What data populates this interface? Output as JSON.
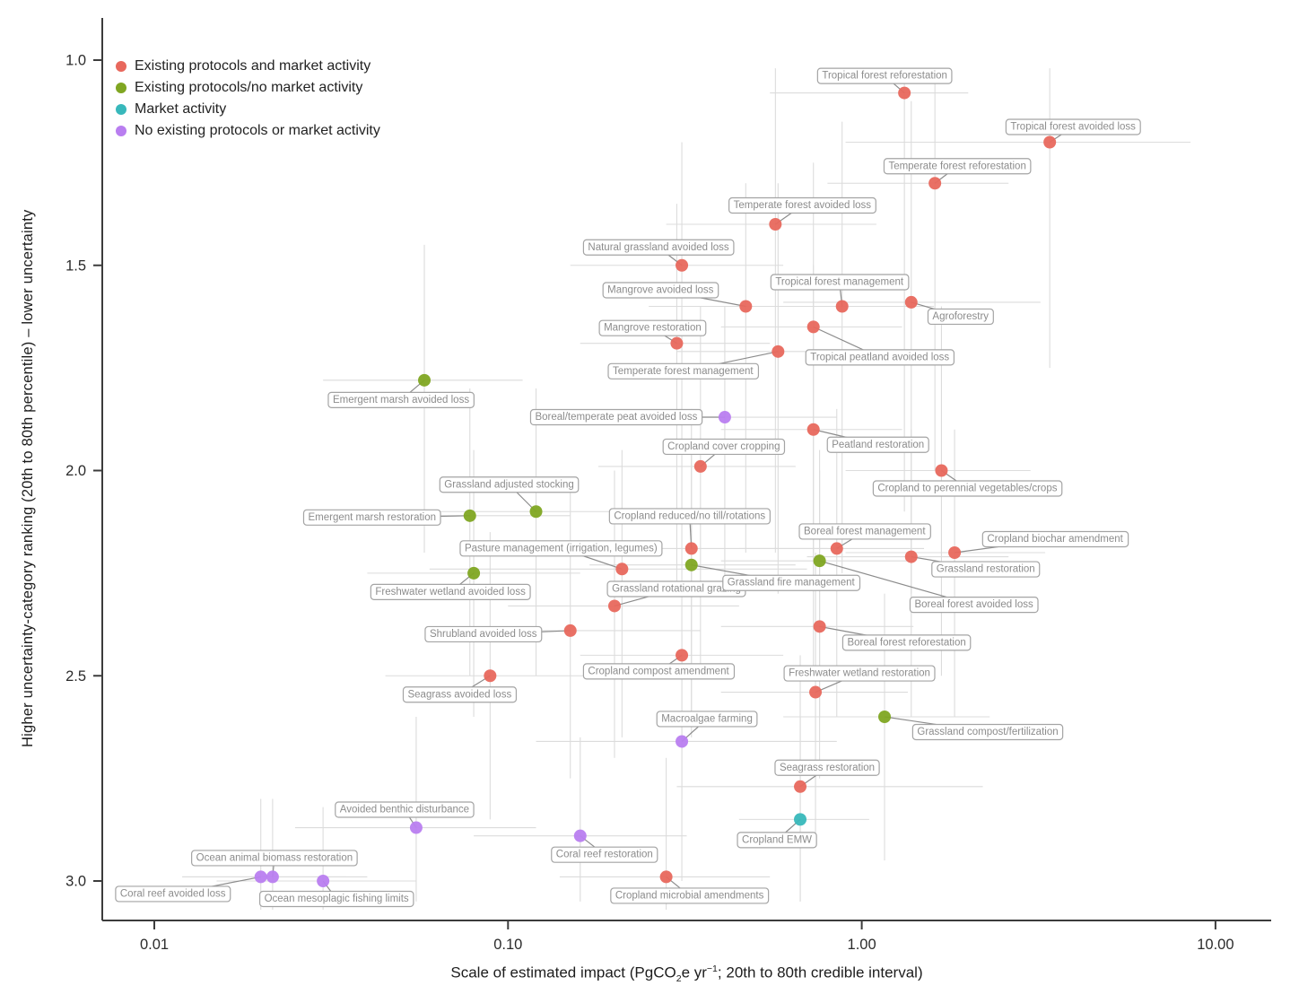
{
  "figure": {
    "ylabel": "Higher uncertainty-category ranking (20th to 80th percentile) – lower uncertainty",
    "xlabel_pre": "Scale of estimated impact (PgCO",
    "xlabel_sub": "2",
    "xlabel_mid": "e yr",
    "xlabel_sup": "−1",
    "xlabel_post": "; 20th to 80th credible interval)"
  },
  "legend": {
    "items": [
      {
        "key": "epm",
        "label": "Existing protocols and market activity",
        "color": "#e8685d"
      },
      {
        "key": "epn",
        "label": "Existing protocols/no market activity",
        "color": "#80a622"
      },
      {
        "key": "ma",
        "label": "Market activity",
        "color": "#38b8bb"
      },
      {
        "key": "nep",
        "label": "No existing protocols or market activity",
        "color": "#b97ef0"
      }
    ]
  },
  "chart_data": {
    "type": "scatter",
    "x_axis": {
      "label": "Scale of estimated impact (PgCO2e yr-1; 20th to 80th credible interval)",
      "scale": "log",
      "ticks": [
        0.01,
        0.1,
        1,
        10
      ],
      "tick_labels": [
        "0.01",
        "0.10",
        "1.00",
        "10.00"
      ],
      "range": [
        0.007,
        13
      ]
    },
    "y_axis": {
      "label": "Higher uncertainty-category ranking (20th to 80th percentile) - lower uncertainty",
      "scale": "linear",
      "inverted": true,
      "ticks": [
        1.0,
        1.5,
        2.0,
        2.5,
        3.0
      ],
      "tick_labels": [
        "1.0",
        "1.5",
        "2.0",
        "2.5",
        "3.0"
      ],
      "range": [
        0.9,
        3.1
      ]
    },
    "style": {
      "error_bar_color": "#dcdcdc",
      "label_border_color": "#a4a4a4",
      "label_text_color": "#8c8c8c",
      "leader_color": "#8c8c8c",
      "axis_color": "#3c3c3c",
      "tick_text_color": "#2b2b2b",
      "point_radius": 7
    },
    "points": [
      {
        "label": "Tropical forest reforestation",
        "category": "epm",
        "x": 1.32,
        "rank": 1.08,
        "x_interval": [
          0.55,
          2.0
        ],
        "rank_interval": [
          1.02,
          2.1
        ],
        "label_offset": [
          -22,
          -19
        ]
      },
      {
        "label": "Tropical forest avoided loss",
        "category": "epm",
        "x": 3.4,
        "rank": 1.2,
        "x_interval": [
          0.9,
          8.5
        ],
        "rank_interval": [
          1.02,
          1.75
        ],
        "label_offset": [
          26,
          -17
        ]
      },
      {
        "label": "Temperate forest reforestation",
        "category": "epm",
        "x": 1.61,
        "rank": 1.3,
        "x_interval": [
          0.8,
          2.6
        ],
        "rank_interval": [
          1.05,
          2.0
        ],
        "label_offset": [
          25,
          -19
        ]
      },
      {
        "label": "Temperate forest avoided loss",
        "category": "epm",
        "x": 0.57,
        "rank": 1.4,
        "x_interval": [
          0.28,
          1.1
        ],
        "rank_interval": [
          1.02,
          2.2
        ],
        "label_offset": [
          30,
          -21
        ]
      },
      {
        "label": "Natural grassland avoided loss",
        "category": "epm",
        "x": 0.31,
        "rank": 1.5,
        "x_interval": [
          0.15,
          0.6
        ],
        "rank_interval": [
          1.2,
          2.1
        ],
        "label_offset": [
          -26,
          -20
        ]
      },
      {
        "label": "Mangrove avoided loss",
        "category": "epm",
        "x": 0.47,
        "rank": 1.6,
        "x_interval": [
          0.25,
          0.8
        ],
        "rank_interval": [
          1.3,
          2.2
        ],
        "label_offset": [
          -95,
          -18
        ]
      },
      {
        "label": "Tropical forest management",
        "category": "epm",
        "x": 0.88,
        "rank": 1.6,
        "x_interval": [
          0.45,
          1.6
        ],
        "rank_interval": [
          1.15,
          2.25
        ],
        "label_offset": [
          -3,
          -27
        ]
      },
      {
        "label": "Agroforestry",
        "category": "epm",
        "x": 1.38,
        "rank": 1.59,
        "x_interval": [
          0.6,
          3.2
        ],
        "rank_interval": [
          1.1,
          2.3
        ],
        "label_offset": [
          55,
          16
        ]
      },
      {
        "label": "Mangrove restoration",
        "category": "epm",
        "x": 0.3,
        "rank": 1.69,
        "x_interval": [
          0.16,
          0.55
        ],
        "rank_interval": [
          1.35,
          2.3
        ],
        "label_offset": [
          -27,
          -17
        ]
      },
      {
        "label": "Temperate forest management",
        "category": "epm",
        "x": 0.58,
        "rank": 1.71,
        "x_interval": [
          0.3,
          1.1
        ],
        "rank_interval": [
          1.3,
          2.3
        ],
        "label_offset": [
          -106,
          22
        ]
      },
      {
        "label": "Tropical peatland avoided loss",
        "category": "epm",
        "x": 0.73,
        "rank": 1.65,
        "x_interval": [
          0.4,
          1.3
        ],
        "rank_interval": [
          1.25,
          2.2
        ],
        "label_offset": [
          74,
          34
        ]
      },
      {
        "label": "Peatland restoration",
        "category": "epm",
        "x": 0.73,
        "rank": 1.9,
        "x_interval": [
          0.4,
          1.3
        ],
        "rank_interval": [
          1.5,
          2.5
        ],
        "label_offset": [
          72,
          17
        ]
      },
      {
        "label": "Cropland cover cropping",
        "category": "epm",
        "x": 0.35,
        "rank": 1.99,
        "x_interval": [
          0.18,
          0.65
        ],
        "rank_interval": [
          1.6,
          2.5
        ],
        "label_offset": [
          26,
          -22
        ]
      },
      {
        "label": "Cropland to perennial vegetables/crops",
        "category": "epm",
        "x": 1.68,
        "rank": 2.0,
        "x_interval": [
          0.9,
          3.0
        ],
        "rank_interval": [
          1.6,
          2.5
        ],
        "label_offset": [
          29,
          20
        ]
      },
      {
        "label": "Cropland reduced/no till/rotations",
        "category": "epm",
        "x": 0.33,
        "rank": 2.19,
        "x_interval": [
          0.13,
          0.8
        ],
        "rank_interval": [
          1.85,
          2.65
        ],
        "label_offset": [
          -2,
          -36
        ]
      },
      {
        "label": "Pasture management (irrigation, legumes)",
        "category": "epm",
        "x": 0.21,
        "rank": 2.24,
        "x_interval": [
          0.06,
          0.7
        ],
        "rank_interval": [
          1.95,
          2.65
        ],
        "label_offset": [
          -68,
          -23
        ]
      },
      {
        "label": "Boreal forest management",
        "category": "epm",
        "x": 0.85,
        "rank": 2.19,
        "x_interval": [
          0.45,
          1.5
        ],
        "rank_interval": [
          1.85,
          2.6
        ],
        "label_offset": [
          31,
          -19
        ]
      },
      {
        "label": "Cropland biochar amendment",
        "category": "epm",
        "x": 1.83,
        "rank": 2.2,
        "x_interval": [
          0.9,
          3.3
        ],
        "rank_interval": [
          1.9,
          2.6
        ],
        "label_offset": [
          112,
          -15
        ]
      },
      {
        "label": "Grassland restoration",
        "category": "epm",
        "x": 1.38,
        "rank": 2.21,
        "x_interval": [
          0.7,
          2.6
        ],
        "rank_interval": [
          1.9,
          2.6
        ],
        "label_offset": [
          83,
          14
        ]
      },
      {
        "label": "Grassland rotational grazing",
        "category": "epm",
        "x": 0.2,
        "rank": 2.33,
        "x_interval": [
          0.1,
          0.45
        ],
        "rank_interval": [
          2.0,
          2.7
        ],
        "label_offset": [
          69,
          -19
        ]
      },
      {
        "label": "Shrubland avoided loss",
        "category": "epm",
        "x": 0.15,
        "rank": 2.39,
        "x_interval": [
          0.07,
          0.35
        ],
        "rank_interval": [
          2.05,
          2.75
        ],
        "label_offset": [
          -97,
          4
        ]
      },
      {
        "label": "Cropland compost amendment",
        "category": "epm",
        "x": 0.31,
        "rank": 2.45,
        "x_interval": [
          0.16,
          0.6
        ],
        "rank_interval": [
          2.1,
          2.8
        ],
        "label_offset": [
          -26,
          18
        ]
      },
      {
        "label": "Seagrass avoided loss",
        "category": "epm",
        "x": 0.089,
        "rank": 2.5,
        "x_interval": [
          0.045,
          0.19
        ],
        "rank_interval": [
          2.15,
          2.85
        ],
        "label_offset": [
          -34,
          21
        ]
      },
      {
        "label": "Boreal forest reforestation",
        "category": "epm",
        "x": 0.76,
        "rank": 2.38,
        "x_interval": [
          0.4,
          1.4
        ],
        "rank_interval": [
          2.0,
          2.75
        ],
        "label_offset": [
          97,
          18
        ]
      },
      {
        "label": "Freshwater wetland restoration",
        "category": "epm",
        "x": 0.74,
        "rank": 2.54,
        "x_interval": [
          0.4,
          1.35
        ],
        "rank_interval": [
          2.2,
          2.9
        ],
        "label_offset": [
          49,
          -21
        ]
      },
      {
        "label": "Seagrass restoration",
        "category": "epm",
        "x": 0.67,
        "rank": 2.77,
        "x_interval": [
          0.3,
          2.2
        ],
        "rank_interval": [
          2.45,
          3.05
        ],
        "label_offset": [
          30,
          -21
        ]
      },
      {
        "label": "Cropland microbial amendments",
        "category": "epm",
        "x": 0.28,
        "rank": 2.99,
        "x_interval": [
          0.14,
          0.55
        ],
        "rank_interval": [
          2.7,
          3.07
        ],
        "label_offset": [
          26,
          21
        ]
      },
      {
        "label": "Emergent marsh avoided loss",
        "category": "epn",
        "x": 0.058,
        "rank": 1.78,
        "x_interval": [
          0.03,
          0.11
        ],
        "rank_interval": [
          1.45,
          2.2
        ],
        "label_offset": [
          -26,
          22
        ]
      },
      {
        "label": "Grassland adjusted stocking",
        "category": "epn",
        "x": 0.12,
        "rank": 2.1,
        "x_interval": [
          0.06,
          0.24
        ],
        "rank_interval": [
          1.8,
          2.5
        ],
        "label_offset": [
          -30,
          -30
        ]
      },
      {
        "label": "Emergent marsh restoration",
        "category": "epn",
        "x": 0.078,
        "rank": 2.11,
        "x_interval": [
          0.04,
          0.15
        ],
        "rank_interval": [
          1.8,
          2.5
        ],
        "label_offset": [
          -109,
          2
        ]
      },
      {
        "label": "Freshwater wetland avoided loss",
        "category": "epn",
        "x": 0.08,
        "rank": 2.25,
        "x_interval": [
          0.04,
          0.16
        ],
        "rank_interval": [
          1.95,
          2.6
        ],
        "label_offset": [
          -26,
          21
        ]
      },
      {
        "label": "Grassland fire management",
        "category": "epn",
        "x": 0.33,
        "rank": 2.23,
        "x_interval": [
          0.17,
          0.65
        ],
        "rank_interval": [
          1.95,
          2.6
        ],
        "label_offset": [
          111,
          20
        ]
      },
      {
        "label": "Boreal forest avoided loss",
        "category": "epn",
        "x": 0.76,
        "rank": 2.22,
        "x_interval": [
          0.4,
          1.4
        ],
        "rank_interval": [
          1.95,
          2.6
        ],
        "label_offset": [
          172,
          49
        ]
      },
      {
        "label": "Grassland compost/fertilization",
        "category": "epn",
        "x": 1.16,
        "rank": 2.6,
        "x_interval": [
          0.6,
          2.3
        ],
        "rank_interval": [
          2.3,
          2.95
        ],
        "label_offset": [
          115,
          17
        ]
      },
      {
        "label": "Cropland EMW",
        "category": "ma",
        "x": 0.67,
        "rank": 2.85,
        "x_interval": [
          0.45,
          1.05
        ],
        "rank_interval": [
          2.6,
          3.05
        ],
        "label_offset": [
          -26,
          23
        ]
      },
      {
        "label": "Boreal/temperate peat avoided loss",
        "category": "nep",
        "x": 0.41,
        "rank": 1.87,
        "x_interval": [
          0.2,
          0.85
        ],
        "rank_interval": [
          1.6,
          2.3
        ],
        "label_offset": [
          -121,
          0
        ]
      },
      {
        "label": "Macroalgae farming",
        "category": "nep",
        "x": 0.31,
        "rank": 2.66,
        "x_interval": [
          0.12,
          0.85
        ],
        "rank_interval": [
          2.4,
          3.0
        ],
        "label_offset": [
          28,
          -25
        ]
      },
      {
        "label": "Avoided benthic disturbance",
        "category": "nep",
        "x": 0.055,
        "rank": 2.87,
        "x_interval": [
          0.025,
          0.12
        ],
        "rank_interval": [
          2.6,
          3.05
        ],
        "label_offset": [
          -13,
          -20
        ]
      },
      {
        "label": "Coral reef restoration",
        "category": "nep",
        "x": 0.16,
        "rank": 2.89,
        "x_interval": [
          0.08,
          0.32
        ],
        "rank_interval": [
          2.65,
          3.05
        ],
        "label_offset": [
          27,
          21
        ]
      },
      {
        "label": "Coral reef avoided loss",
        "category": "nep",
        "x": 0.02,
        "rank": 2.99,
        "x_interval": [
          0.012,
          0.035
        ],
        "rank_interval": [
          2.8,
          3.07
        ],
        "label_offset": [
          -98,
          19
        ]
      },
      {
        "label": "Ocean animal biomass restoration",
        "category": "nep",
        "x": 0.0216,
        "rank": 2.99,
        "x_interval": [
          0.012,
          0.04
        ],
        "rank_interval": [
          2.8,
          3.07
        ],
        "label_offset": [
          2,
          -21
        ]
      },
      {
        "label": "Ocean mesoplagic fishing limits",
        "category": "nep",
        "x": 0.03,
        "rank": 3.0,
        "x_interval": [
          0.015,
          0.055
        ],
        "rank_interval": [
          2.82,
          3.07
        ],
        "label_offset": [
          15,
          20
        ]
      }
    ]
  }
}
